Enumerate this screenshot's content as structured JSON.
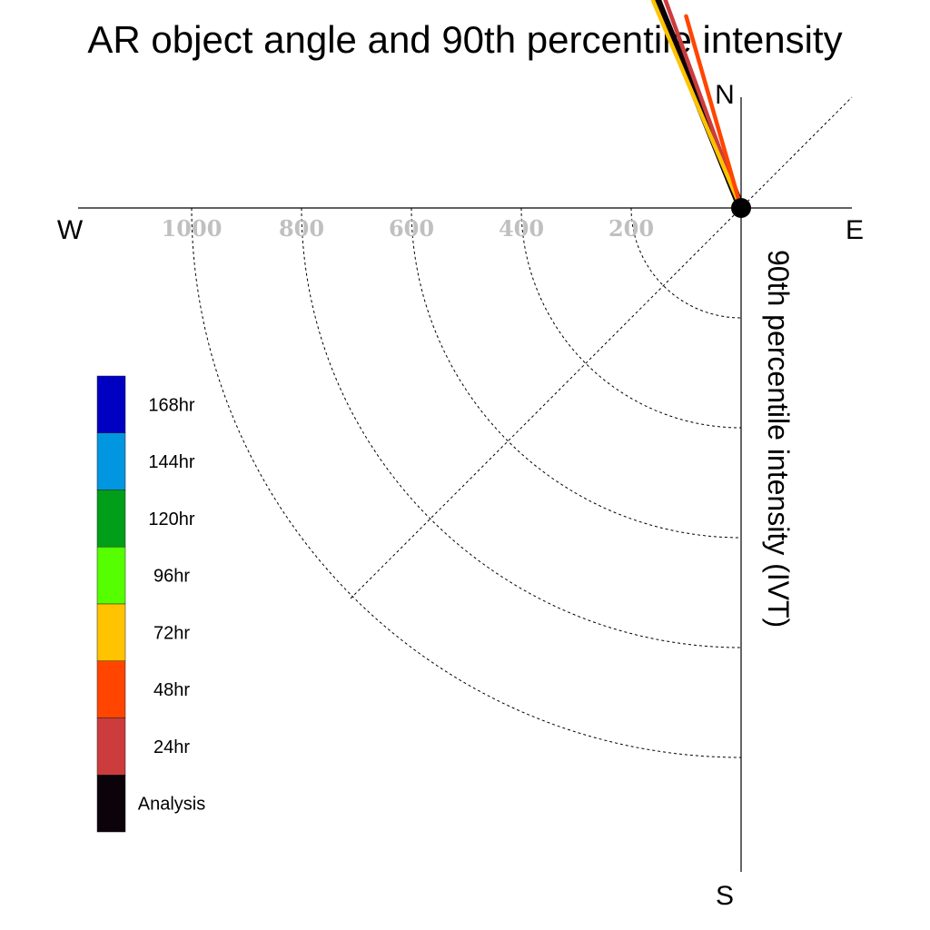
{
  "chart_data": {
    "type": "polar-vector",
    "title": "AR object angle and 90th percentile intensity",
    "ylabel": "90th percentile intensity (IVT)",
    "compass": {
      "n": "N",
      "e": "E",
      "s": "S",
      "w": "W"
    },
    "rlim": [
      0,
      1200
    ],
    "rings": [
      200,
      400,
      600,
      800,
      1000
    ],
    "tick_labels": [
      "1000",
      "800",
      "600",
      "400",
      "200"
    ],
    "grid": true,
    "legend_placement": "left",
    "series": [
      {
        "name": "Analysis",
        "color": "#0b0309",
        "angle_deg": 338,
        "magnitude": 430
      },
      {
        "name": "24hr",
        "color": "#cc3c3c",
        "angle_deg": 340,
        "magnitude": 443
      },
      {
        "name": "72hr",
        "color": "#ffc300",
        "angle_deg": 337,
        "magnitude": 430
      },
      {
        "name": "48hr",
        "color": "#ff4500",
        "angle_deg": 344,
        "magnitude": 363
      }
    ],
    "legend": [
      {
        "label": "168hr",
        "color": "#0000c3"
      },
      {
        "label": "144hr",
        "color": "#0096e0"
      },
      {
        "label": "120hr",
        "color": "#009e19"
      },
      {
        "label": "96hr",
        "color": "#55ff00"
      },
      {
        "label": "72hr",
        "color": "#ffc300"
      },
      {
        "label": "48hr",
        "color": "#ff4500"
      },
      {
        "label": "24hr",
        "color": "#cc3c3c"
      },
      {
        "label": "Analysis",
        "color": "#0b0309"
      }
    ]
  }
}
